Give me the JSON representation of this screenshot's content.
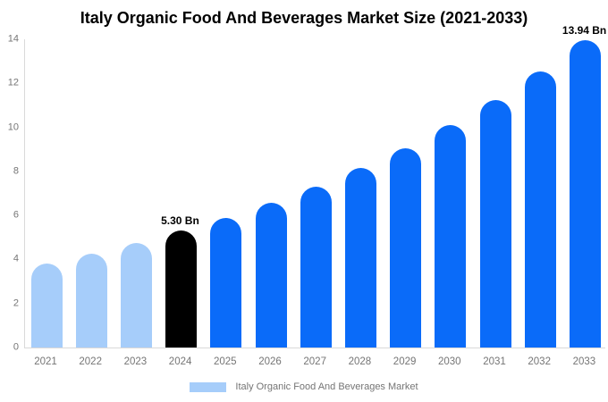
{
  "chart_data": {
    "type": "bar",
    "title": "Italy Organic Food And Beverages Market Size (2021-2033)",
    "categories": [
      "2021",
      "2022",
      "2023",
      "2024",
      "2025",
      "2026",
      "2027",
      "2028",
      "2029",
      "2030",
      "2031",
      "2032",
      "2033"
    ],
    "values": [
      3.8,
      4.27,
      4.76,
      5.3,
      5.9,
      6.57,
      7.32,
      8.15,
      9.07,
      10.1,
      11.24,
      12.52,
      13.94
    ],
    "unit": "Bn",
    "bar_color_keys": [
      "historical",
      "historical",
      "historical",
      "current",
      "forecast",
      "forecast",
      "forecast",
      "forecast",
      "forecast",
      "forecast",
      "forecast",
      "forecast",
      "forecast"
    ],
    "colors": {
      "historical": "#A6CDFA",
      "current": "#000000",
      "forecast": "#0A6BF9",
      "axis_line": "#D9D9D9",
      "tick_text": "#757575",
      "title_text": "#000000"
    },
    "xlabel": "",
    "ylabel": "",
    "ylim": [
      0,
      14
    ],
    "yticks": [
      0,
      2,
      4,
      6,
      8,
      10,
      12,
      14
    ],
    "grid": false,
    "annotations": [
      {
        "category": "2024",
        "text": "5.30 Bn"
      },
      {
        "category": "2033",
        "text": "13.94 Bn"
      }
    ],
    "legend": {
      "position": "bottom",
      "label": "Italy Organic Food And Beverages Market",
      "swatch_color_key": "historical"
    }
  }
}
